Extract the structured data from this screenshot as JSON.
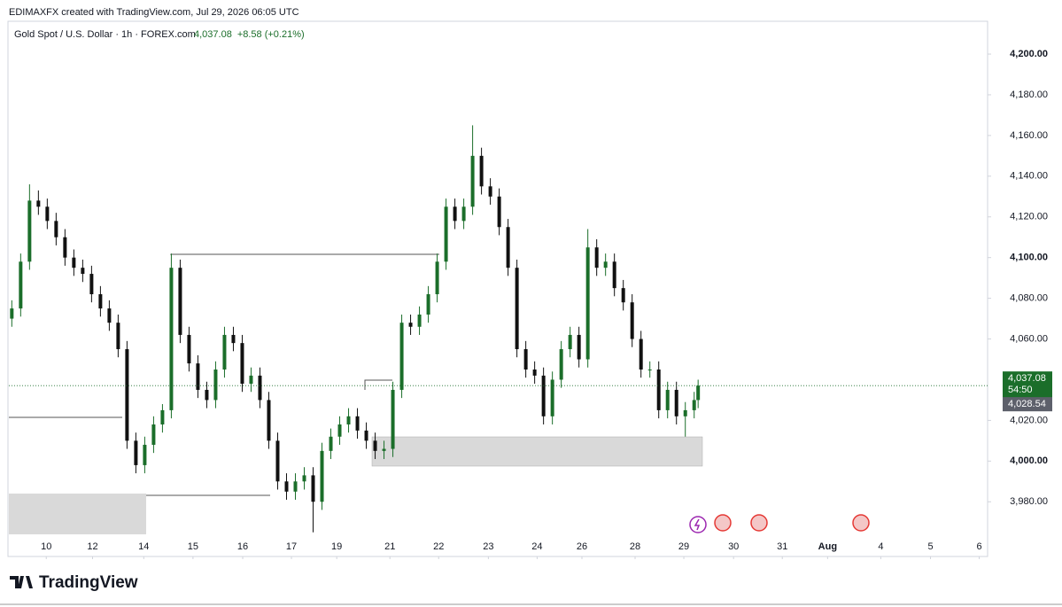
{
  "header": {
    "attribution": "EDIMAXFX created with TradingView.com, Jul 29, 2026 06:05 UTC"
  },
  "footer": {
    "brand": "TradingView"
  },
  "chart_data": {
    "type": "candlestick",
    "title": "Gold Spot / U.S. Dollar · 1h · FOREX.com",
    "last_price": "4,037.08",
    "change": "+8.58 (+0.21%)",
    "up_color": "#1b6e2a",
    "down_color": "#111111",
    "price_label": {
      "value": 4037.08,
      "label": "4,037.08"
    },
    "countdown": "54:50",
    "prev_label": {
      "value": 4028.54,
      "label": "4,028.54"
    },
    "xlim": [
      -0.76,
      19.12
    ],
    "ylim": [
      3964,
      4217
    ],
    "xticks": [
      {
        "value": 0,
        "label": "10"
      },
      {
        "value": 0.94,
        "label": "12"
      },
      {
        "value": 1.98,
        "label": "14"
      },
      {
        "value": 2.98,
        "label": "15"
      },
      {
        "value": 3.99,
        "label": "16"
      },
      {
        "value": 4.98,
        "label": "17"
      },
      {
        "value": 5.9,
        "label": "19"
      },
      {
        "value": 6.98,
        "label": "21"
      },
      {
        "value": 7.97,
        "label": "22"
      },
      {
        "value": 8.98,
        "label": "23"
      },
      {
        "value": 9.97,
        "label": "24"
      },
      {
        "value": 10.88,
        "label": "26"
      },
      {
        "value": 11.96,
        "label": "28"
      },
      {
        "value": 12.95,
        "label": "29"
      },
      {
        "value": 13.96,
        "label": "30"
      },
      {
        "value": 14.95,
        "label": "31"
      },
      {
        "value": 15.87,
        "label": "Aug"
      },
      {
        "value": 16.95,
        "label": "4"
      },
      {
        "value": 17.96,
        "label": "5"
      },
      {
        "value": 18.95,
        "label": "6"
      }
    ],
    "yticks": [
      {
        "value": 3980,
        "label": "3,980.00"
      },
      {
        "value": 4000,
        "label": "4,000.00"
      },
      {
        "value": 4020,
        "label": "4,020.00"
      },
      {
        "value": 4060,
        "label": "4,060.00"
      },
      {
        "value": 4080,
        "label": "4,080.00"
      },
      {
        "value": 4100,
        "label": "4,100.00"
      },
      {
        "value": 4120,
        "label": "4,120.00"
      },
      {
        "value": 4140,
        "label": "4,140.00"
      },
      {
        "value": 4160,
        "label": "4,160.00"
      },
      {
        "value": 4180,
        "label": "4,180.00"
      },
      {
        "value": 4200,
        "label": "4,200.00"
      }
    ],
    "x": [
      -0.7,
      -0.52,
      -0.34,
      -0.16,
      0.02,
      0.2,
      0.38,
      0.56,
      0.74,
      0.92,
      1.1,
      1.28,
      1.46,
      1.64,
      1.82,
      2.0,
      2.18,
      2.36,
      2.54,
      2.72,
      2.9,
      3.08,
      3.26,
      3.44,
      3.62,
      3.8,
      3.98,
      4.16,
      4.34,
      4.52,
      4.7,
      4.88,
      5.06,
      5.24,
      5.42,
      5.6,
      5.78,
      5.96,
      6.14,
      6.32,
      6.5,
      6.68,
      6.86,
      7.04,
      7.22,
      7.4,
      7.58,
      7.76,
      7.94,
      8.12,
      8.3,
      8.48,
      8.66,
      8.84,
      9.02,
      9.2,
      9.38,
      9.56,
      9.74,
      9.92,
      10.1,
      10.28,
      10.46,
      10.64,
      10.82,
      11.0,
      11.18,
      11.36,
      11.54,
      11.72,
      11.9,
      12.08,
      12.26,
      12.44,
      12.62,
      12.8,
      12.98,
      13.16,
      13.24
    ],
    "open": [
      4070,
      4075,
      4098,
      4128,
      4125,
      4118,
      4110,
      4100,
      4095,
      4092,
      4082,
      4075,
      4068,
      4055,
      4010,
      3998,
      4008,
      4018,
      4025,
      4095,
      4062,
      4048,
      4035,
      4030,
      4045,
      4062,
      4058,
      4038,
      4042,
      4030,
      4010,
      3990,
      3985,
      3990,
      3993,
      3980,
      4005,
      4012,
      4018,
      4022,
      4015,
      4010,
      4005,
      4006,
      4035,
      4068,
      4066,
      4072,
      4082,
      4098,
      4125,
      4118,
      4125,
      4150,
      4135,
      4130,
      4115,
      4095,
      4055,
      4045,
      4042,
      4022,
      4040,
      4055,
      4062,
      4050,
      4105,
      4095,
      4098,
      4085,
      4078,
      4060,
      4045,
      4045,
      4025,
      4035,
      4022,
      4025,
      4030
    ],
    "high": [
      4079,
      4102,
      4136,
      4133,
      4129,
      4122,
      4114,
      4104,
      4099,
      4096,
      4086,
      4079,
      4072,
      4059,
      4014,
      4012,
      4022,
      4028,
      4102,
      4099,
      4066,
      4052,
      4039,
      4049,
      4066,
      4066,
      4062,
      4046,
      4046,
      4034,
      4014,
      3994,
      3994,
      3997,
      3997,
      4009,
      4016,
      4022,
      4026,
      4026,
      4019,
      4014,
      4010,
      4039,
      4072,
      4072,
      4076,
      4086,
      4102,
      4129,
      4129,
      4129,
      4165,
      4154,
      4139,
      4134,
      4119,
      4099,
      4059,
      4049,
      4046,
      4044,
      4059,
      4066,
      4066,
      4114,
      4109,
      4102,
      4102,
      4089,
      4082,
      4064,
      4049,
      4049,
      4039,
      4039,
      4029,
      4034,
      4040
    ],
    "low": [
      4066,
      4071,
      4094,
      4121,
      4114,
      4106,
      4096,
      4091,
      4088,
      4078,
      4071,
      4064,
      4051,
      4006,
      3994,
      3994,
      4004,
      4014,
      4021,
      4058,
      4044,
      4031,
      4026,
      4026,
      4041,
      4054,
      4034,
      4034,
      4026,
      4006,
      3986,
      3981,
      3981,
      3986,
      3965,
      3976,
      4001,
      4008,
      4014,
      4011,
      4006,
      4001,
      4001,
      4002,
      4031,
      4062,
      4062,
      4068,
      4078,
      4094,
      4114,
      4114,
      4121,
      4131,
      4126,
      4111,
      4091,
      4051,
      4041,
      4038,
      4018,
      4018,
      4036,
      4051,
      4046,
      4046,
      4091,
      4091,
      4081,
      4074,
      4056,
      4041,
      4041,
      4021,
      4021,
      4018,
      4012,
      4021,
      4026
    ],
    "close": [
      4075,
      4098,
      4128,
      4125,
      4118,
      4110,
      4100,
      4095,
      4092,
      4082,
      4075,
      4068,
      4055,
      4010,
      3998,
      4008,
      4018,
      4025,
      4095,
      4062,
      4048,
      4035,
      4030,
      4045,
      4062,
      4058,
      4038,
      4042,
      4030,
      4010,
      3990,
      3985,
      3990,
      3993,
      3980,
      4005,
      4012,
      4018,
      4022,
      4015,
      4010,
      4005,
      4006,
      4035,
      4068,
      4066,
      4072,
      4082,
      4098,
      4125,
      4118,
      4125,
      4150,
      4135,
      4130,
      4115,
      4095,
      4055,
      4045,
      4042,
      4022,
      4040,
      4055,
      4062,
      4050,
      4105,
      4095,
      4098,
      4085,
      4078,
      4060,
      4045,
      4045,
      4025,
      4035,
      4022,
      4025,
      4030,
      4037.08
    ]
  }
}
